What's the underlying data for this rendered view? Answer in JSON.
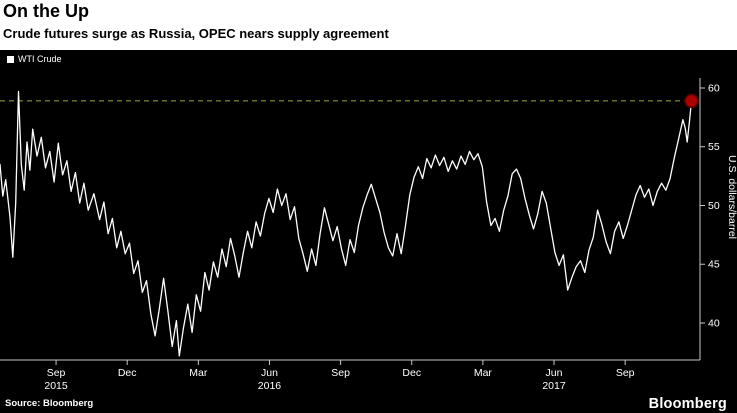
{
  "header": {
    "title": "On the Up",
    "subtitle": "Crude futures surge as Russia, OPEC nears supply agreement"
  },
  "source": {
    "label": "Source: Bloomberg"
  },
  "branding": {
    "logo_text": "Bloomberg"
  },
  "colors": {
    "page_bg": "#ffffff",
    "chart_bg": "#000000",
    "line": "#ffffff",
    "axis": "#c8c8c8",
    "tick_text": "#ffffff",
    "dashed": "#a6a63c",
    "marker": "#aa0000",
    "marker_edge": "#550000"
  },
  "chart_data": {
    "type": "line",
    "title": "On the Up",
    "subtitle": "Crude futures surge as Russia, OPEC nears supply agreement",
    "ylabel": "U.S. dollars/barrel",
    "xlabel": "",
    "ylim": [
      36.85,
      60.85
    ],
    "xlim": [
      2015.47,
      2017.93
    ],
    "yticks": [
      40,
      45,
      50,
      55,
      60
    ],
    "xticks": [
      {
        "x": 2015.667,
        "label": "Sep"
      },
      {
        "x": 2015.917,
        "label": "Dec"
      },
      {
        "x": 2016.167,
        "label": "Mar"
      },
      {
        "x": 2016.417,
        "label": "Jun"
      },
      {
        "x": 2016.667,
        "label": "Sep"
      },
      {
        "x": 2016.917,
        "label": "Dec"
      },
      {
        "x": 2017.167,
        "label": "Mar"
      },
      {
        "x": 2017.417,
        "label": "Jun"
      },
      {
        "x": 2017.667,
        "label": "Sep"
      }
    ],
    "year_ticks": [
      {
        "x": 2015.667,
        "label": "2015"
      },
      {
        "x": 2016.417,
        "label": "2016"
      },
      {
        "x": 2017.417,
        "label": "2017"
      }
    ],
    "grid": false,
    "legend_position": "top-left",
    "reference_line": {
      "value": 58.9,
      "style": "dashed",
      "color": "#a6a63c"
    },
    "end_marker": {
      "x": 2017.9,
      "value": 58.9,
      "color": "#aa0000"
    },
    "series": [
      {
        "name": "WTI Crude",
        "color": "#ffffff",
        "points": [
          [
            2015.47,
            53.5
          ],
          [
            2015.48,
            50.8
          ],
          [
            2015.49,
            52.2
          ],
          [
            2015.505,
            49.0
          ],
          [
            2015.515,
            45.6
          ],
          [
            2015.525,
            50.2
          ],
          [
            2015.535,
            59.7
          ],
          [
            2015.545,
            53.5
          ],
          [
            2015.555,
            51.3
          ],
          [
            2015.565,
            55.4
          ],
          [
            2015.575,
            53.0
          ],
          [
            2015.585,
            56.5
          ],
          [
            2015.6,
            54.2
          ],
          [
            2015.615,
            55.8
          ],
          [
            2015.63,
            53.2
          ],
          [
            2015.645,
            54.6
          ],
          [
            2015.66,
            52.0
          ],
          [
            2015.675,
            55.3
          ],
          [
            2015.69,
            52.6
          ],
          [
            2015.705,
            53.8
          ],
          [
            2015.72,
            51.2
          ],
          [
            2015.735,
            52.8
          ],
          [
            2015.75,
            50.2
          ],
          [
            2015.765,
            51.9
          ],
          [
            2015.78,
            49.6
          ],
          [
            2015.8,
            51.0
          ],
          [
            2015.82,
            48.8
          ],
          [
            2015.835,
            50.3
          ],
          [
            2015.85,
            47.6
          ],
          [
            2015.865,
            48.9
          ],
          [
            2015.88,
            46.4
          ],
          [
            2015.895,
            47.8
          ],
          [
            2015.91,
            45.9
          ],
          [
            2015.925,
            46.8
          ],
          [
            2015.94,
            44.2
          ],
          [
            2015.955,
            45.3
          ],
          [
            2015.97,
            42.6
          ],
          [
            2015.985,
            43.6
          ],
          [
            2016.0,
            40.8
          ],
          [
            2016.015,
            38.9
          ],
          [
            2016.03,
            41.2
          ],
          [
            2016.045,
            43.8
          ],
          [
            2016.06,
            41.0
          ],
          [
            2016.075,
            38.0
          ],
          [
            2016.09,
            40.2
          ],
          [
            2016.1,
            37.2
          ],
          [
            2016.115,
            39.6
          ],
          [
            2016.13,
            41.6
          ],
          [
            2016.145,
            39.2
          ],
          [
            2016.16,
            42.4
          ],
          [
            2016.175,
            41.0
          ],
          [
            2016.19,
            44.3
          ],
          [
            2016.205,
            42.8
          ],
          [
            2016.22,
            45.2
          ],
          [
            2016.235,
            43.9
          ],
          [
            2016.25,
            46.3
          ],
          [
            2016.265,
            44.8
          ],
          [
            2016.28,
            47.2
          ],
          [
            2016.295,
            45.7
          ],
          [
            2016.31,
            43.9
          ],
          [
            2016.325,
            46.0
          ],
          [
            2016.34,
            47.8
          ],
          [
            2016.355,
            46.4
          ],
          [
            2016.37,
            48.6
          ],
          [
            2016.385,
            47.4
          ],
          [
            2016.4,
            49.3
          ],
          [
            2016.415,
            50.6
          ],
          [
            2016.43,
            49.4
          ],
          [
            2016.445,
            51.4
          ],
          [
            2016.46,
            50.0
          ],
          [
            2016.475,
            51.0
          ],
          [
            2016.49,
            48.8
          ],
          [
            2016.505,
            49.9
          ],
          [
            2016.52,
            47.2
          ],
          [
            2016.535,
            45.9
          ],
          [
            2016.55,
            44.4
          ],
          [
            2016.565,
            46.3
          ],
          [
            2016.58,
            44.9
          ],
          [
            2016.595,
            47.6
          ],
          [
            2016.61,
            49.8
          ],
          [
            2016.625,
            48.4
          ],
          [
            2016.64,
            47.0
          ],
          [
            2016.655,
            48.2
          ],
          [
            2016.67,
            46.3
          ],
          [
            2016.685,
            44.9
          ],
          [
            2016.7,
            47.1
          ],
          [
            2016.715,
            46.0
          ],
          [
            2016.73,
            48.3
          ],
          [
            2016.745,
            49.8
          ],
          [
            2016.76,
            50.9
          ],
          [
            2016.775,
            51.8
          ],
          [
            2016.79,
            50.6
          ],
          [
            2016.805,
            49.4
          ],
          [
            2016.82,
            47.7
          ],
          [
            2016.835,
            46.4
          ],
          [
            2016.85,
            45.7
          ],
          [
            2016.865,
            47.6
          ],
          [
            2016.88,
            45.9
          ],
          [
            2016.895,
            48.3
          ],
          [
            2016.91,
            50.9
          ],
          [
            2016.925,
            52.4
          ],
          [
            2016.94,
            53.3
          ],
          [
            2016.955,
            52.3
          ],
          [
            2016.97,
            54.0
          ],
          [
            2016.985,
            53.2
          ],
          [
            2017.0,
            54.3
          ],
          [
            2017.015,
            53.4
          ],
          [
            2017.03,
            54.1
          ],
          [
            2017.045,
            52.9
          ],
          [
            2017.06,
            53.8
          ],
          [
            2017.075,
            53.1
          ],
          [
            2017.09,
            54.2
          ],
          [
            2017.105,
            53.5
          ],
          [
            2017.12,
            54.6
          ],
          [
            2017.135,
            53.9
          ],
          [
            2017.15,
            54.4
          ],
          [
            2017.165,
            53.3
          ],
          [
            2017.18,
            50.3
          ],
          [
            2017.195,
            48.3
          ],
          [
            2017.21,
            48.9
          ],
          [
            2017.225,
            47.8
          ],
          [
            2017.24,
            49.6
          ],
          [
            2017.255,
            50.8
          ],
          [
            2017.27,
            52.7
          ],
          [
            2017.285,
            53.1
          ],
          [
            2017.3,
            52.3
          ],
          [
            2017.315,
            50.6
          ],
          [
            2017.33,
            49.2
          ],
          [
            2017.345,
            48.0
          ],
          [
            2017.36,
            49.3
          ],
          [
            2017.375,
            51.2
          ],
          [
            2017.39,
            50.2
          ],
          [
            2017.405,
            48.1
          ],
          [
            2017.42,
            46.0
          ],
          [
            2017.435,
            44.9
          ],
          [
            2017.45,
            45.8
          ],
          [
            2017.465,
            42.8
          ],
          [
            2017.48,
            43.9
          ],
          [
            2017.495,
            44.8
          ],
          [
            2017.51,
            45.3
          ],
          [
            2017.525,
            44.3
          ],
          [
            2017.54,
            46.2
          ],
          [
            2017.555,
            47.3
          ],
          [
            2017.57,
            49.6
          ],
          [
            2017.585,
            48.4
          ],
          [
            2017.6,
            46.9
          ],
          [
            2017.615,
            45.9
          ],
          [
            2017.63,
            47.8
          ],
          [
            2017.645,
            48.6
          ],
          [
            2017.66,
            47.2
          ],
          [
            2017.675,
            48.3
          ],
          [
            2017.69,
            49.6
          ],
          [
            2017.705,
            50.9
          ],
          [
            2017.72,
            51.7
          ],
          [
            2017.735,
            50.7
          ],
          [
            2017.75,
            51.4
          ],
          [
            2017.765,
            50.0
          ],
          [
            2017.78,
            51.2
          ],
          [
            2017.795,
            51.9
          ],
          [
            2017.81,
            51.3
          ],
          [
            2017.825,
            52.3
          ],
          [
            2017.84,
            54.1
          ],
          [
            2017.855,
            55.7
          ],
          [
            2017.87,
            57.3
          ],
          [
            2017.878,
            56.6
          ],
          [
            2017.885,
            55.4
          ],
          [
            2017.893,
            57.2
          ],
          [
            2017.9,
            58.9
          ]
        ]
      }
    ]
  }
}
